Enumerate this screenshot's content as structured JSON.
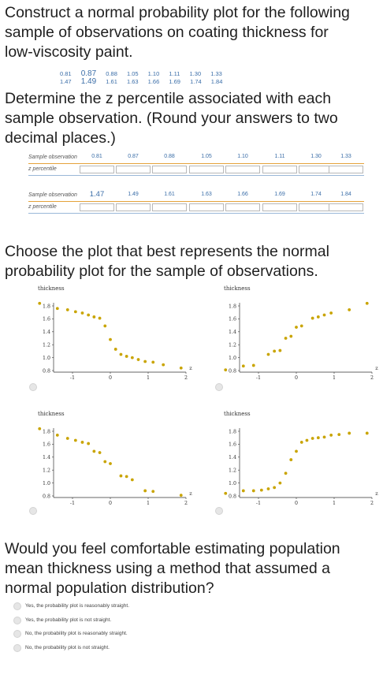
{
  "question1": {
    "text_line1": "Construct a normal probability plot for the following",
    "text_line2": "sample of observations on coating thickness for",
    "text_line3": "low-viscosity paint."
  },
  "observations": {
    "row1": [
      "0.81",
      "0.87",
      "0.88",
      "1.05",
      "1.10",
      "1.11",
      "1.30",
      "1.33"
    ],
    "row2": [
      "1.47",
      "1.49",
      "1.61",
      "1.63",
      "1.66",
      "1.69",
      "1.74",
      "1.84"
    ]
  },
  "question2": {
    "text_line1": "Determine the z percentile associated with each",
    "text_line2": "sample observation. (Round your answers to two",
    "text_line3": "decimal places.)"
  },
  "table1": {
    "label_obs": "Sample observation",
    "label_z": "z percentile",
    "values": [
      "0.81",
      "0.87",
      "0.88",
      "1.05",
      "1.10",
      "1.11",
      "1.30",
      "1.33"
    ]
  },
  "table2": {
    "label_obs": "Sample observation",
    "label_z": "z percentile",
    "values": [
      "1.47",
      "1.49",
      "1.61",
      "1.63",
      "1.66",
      "1.69",
      "1.74",
      "1.84"
    ]
  },
  "question3": {
    "text_line1": "Choose the plot that best represents the normal",
    "text_line2": "probability plot for the sample of observations."
  },
  "chart_data": [
    {
      "type": "scatter",
      "ylabel": "thickness",
      "xlabel": "z",
      "xlim": [
        -2,
        2
      ],
      "ylim": [
        0.8,
        1.8
      ],
      "xticks": [
        "-1",
        "0",
        "1",
        "2"
      ],
      "yticks": [
        "0.8",
        "1.0",
        "1.2",
        "1.4",
        "1.6",
        "1.8"
      ],
      "points": [
        [
          -1.87,
          1.84
        ],
        [
          -1.4,
          1.76
        ],
        [
          -1.13,
          1.74
        ],
        [
          -0.92,
          1.71
        ],
        [
          -0.74,
          1.69
        ],
        [
          -0.58,
          1.66
        ],
        [
          -0.43,
          1.63
        ],
        [
          -0.28,
          1.61
        ],
        [
          -0.14,
          1.49
        ],
        [
          0.0,
          1.28
        ],
        [
          0.14,
          1.13
        ],
        [
          0.28,
          1.05
        ],
        [
          0.43,
          1.02
        ],
        [
          0.58,
          1.0
        ],
        [
          0.74,
          0.97
        ],
        [
          0.92,
          0.94
        ],
        [
          1.13,
          0.93
        ],
        [
          1.4,
          0.89
        ],
        [
          1.87,
          0.84
        ]
      ]
    },
    {
      "type": "scatter",
      "ylabel": "thickness",
      "xlabel": "z",
      "xlim": [
        -2,
        2
      ],
      "ylim": [
        0.8,
        1.8
      ],
      "xticks": [
        "-1",
        "0",
        "1",
        "2"
      ],
      "yticks": [
        "0.8",
        "1.0",
        "1.2",
        "1.4",
        "1.6",
        "1.8"
      ],
      "points": [
        [
          -1.87,
          0.81
        ],
        [
          -1.4,
          0.87
        ],
        [
          -1.13,
          0.88
        ],
        [
          -0.74,
          1.05
        ],
        [
          -0.58,
          1.1
        ],
        [
          -0.43,
          1.11
        ],
        [
          -0.28,
          1.3
        ],
        [
          -0.14,
          1.33
        ],
        [
          0.0,
          1.47
        ],
        [
          0.14,
          1.49
        ],
        [
          0.43,
          1.61
        ],
        [
          0.58,
          1.63
        ],
        [
          0.74,
          1.66
        ],
        [
          0.92,
          1.69
        ],
        [
          1.4,
          1.74
        ],
        [
          1.87,
          1.84
        ]
      ]
    },
    {
      "type": "scatter",
      "ylabel": "thickness",
      "xlabel": "z",
      "xlim": [
        -2,
        2
      ],
      "ylim": [
        0.8,
        1.8
      ],
      "xticks": [
        "-1",
        "0",
        "1",
        "2"
      ],
      "yticks": [
        "0.8",
        "1.0",
        "1.2",
        "1.4",
        "1.6",
        "1.8"
      ],
      "points": [
        [
          -1.87,
          1.84
        ],
        [
          -1.4,
          1.74
        ],
        [
          -1.13,
          1.69
        ],
        [
          -0.92,
          1.66
        ],
        [
          -0.74,
          1.63
        ],
        [
          -0.58,
          1.61
        ],
        [
          -0.43,
          1.49
        ],
        [
          -0.28,
          1.47
        ],
        [
          -0.14,
          1.33
        ],
        [
          0.0,
          1.3
        ],
        [
          0.28,
          1.11
        ],
        [
          0.43,
          1.1
        ],
        [
          0.58,
          1.05
        ],
        [
          0.92,
          0.88
        ],
        [
          1.13,
          0.87
        ],
        [
          1.87,
          0.81
        ]
      ]
    },
    {
      "type": "scatter",
      "ylabel": "thickness",
      "xlabel": "z",
      "xlim": [
        -2,
        2
      ],
      "ylim": [
        0.8,
        1.8
      ],
      "xticks": [
        "-1",
        "0",
        "1",
        "2"
      ],
      "yticks": [
        "0.8",
        "1.0",
        "1.2",
        "1.4",
        "1.6",
        "1.8"
      ],
      "points": [
        [
          -1.87,
          0.84
        ],
        [
          -1.4,
          0.88
        ],
        [
          -1.13,
          0.88
        ],
        [
          -0.92,
          0.89
        ],
        [
          -0.74,
          0.91
        ],
        [
          -0.58,
          0.93
        ],
        [
          -0.43,
          1.0
        ],
        [
          -0.28,
          1.15
        ],
        [
          -0.14,
          1.36
        ],
        [
          0.0,
          1.49
        ],
        [
          0.14,
          1.63
        ],
        [
          0.28,
          1.66
        ],
        [
          0.43,
          1.69
        ],
        [
          0.58,
          1.7
        ],
        [
          0.74,
          1.71
        ],
        [
          0.92,
          1.74
        ],
        [
          1.13,
          1.75
        ],
        [
          1.4,
          1.77
        ],
        [
          1.87,
          1.77
        ]
      ]
    }
  ],
  "question4": {
    "text_line1": "Would you feel comfortable estimating population",
    "text_line2": "mean thickness using a method that assumed a",
    "text_line3": "normal population distribution?"
  },
  "options": [
    "Yes, the probability plot is reasonably straight.",
    "Yes, the probability plot is not straight.",
    "No, the probability plot is reasonably straight.",
    "No, the probability plot is not straight."
  ],
  "colors": {
    "point": "#c9a400",
    "table_accent": "#e5a23b",
    "table_accent2": "#9ab8d8",
    "obs_text": "#3b6ea8"
  }
}
